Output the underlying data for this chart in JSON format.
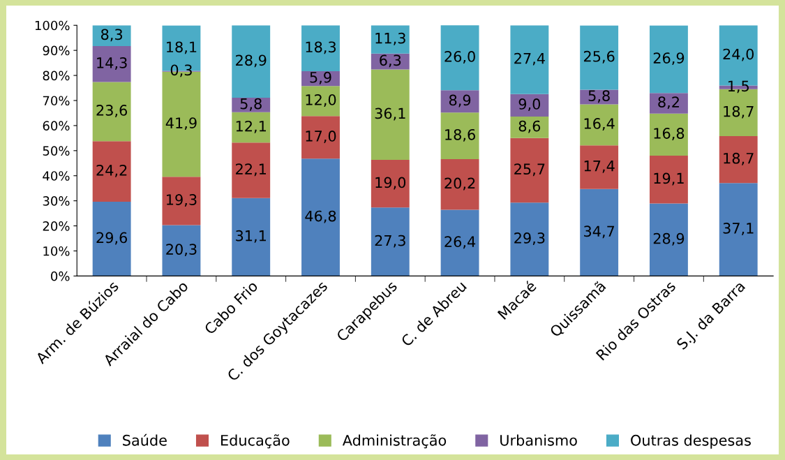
{
  "chart_data": {
    "type": "bar",
    "stacked": true,
    "categories": [
      "Arm. de Búzios",
      "Arraial do Cabo",
      "Cabo Frio",
      "C. dos Goytacazes",
      "Carapebus",
      "C. de Abreu",
      "Macaé",
      "Quissamã",
      "Rio das Ostras",
      "S.J. da Barra"
    ],
    "series": [
      {
        "name": "Saúde",
        "color": "#4f81bd",
        "values": [
          29.6,
          20.3,
          31.1,
          46.8,
          27.3,
          26.4,
          29.3,
          34.7,
          28.9,
          37.1
        ],
        "value_labels": [
          "29,6",
          "20,3",
          "31,1",
          "46,8",
          "27,3",
          "26,4",
          "29,3",
          "34,7",
          "28,9",
          "37,1"
        ]
      },
      {
        "name": "Educação",
        "color": "#c0504d",
        "values": [
          24.2,
          19.3,
          22.1,
          17.0,
          19.0,
          20.2,
          25.7,
          17.4,
          19.1,
          18.7
        ],
        "value_labels": [
          "24,2",
          "19,3",
          "22,1",
          "17,0",
          "19,0",
          "20,2",
          "25,7",
          "17,4",
          "19,1",
          "18,7"
        ]
      },
      {
        "name": "Administração",
        "color": "#9bbb59",
        "values": [
          23.6,
          41.9,
          12.1,
          12.0,
          36.1,
          18.6,
          8.6,
          16.4,
          16.8,
          18.7
        ],
        "value_labels": [
          "23,6",
          "41,9",
          "12,1",
          "12,0",
          "36,1",
          "18,6",
          "8,6",
          "16,4",
          "16,8",
          "18,7"
        ]
      },
      {
        "name": "Urbanismo",
        "color": "#8064a2",
        "values": [
          14.3,
          0.3,
          5.8,
          5.9,
          6.3,
          8.9,
          9.0,
          5.8,
          8.2,
          1.5
        ],
        "value_labels": [
          "14,3",
          "0,3",
          "5,8",
          "5,9",
          "6,3",
          "8,9",
          "9,0",
          "5,8",
          "8,2",
          "1,5"
        ]
      },
      {
        "name": "Outras despesas",
        "color": "#4bacc6",
        "values": [
          8.3,
          18.1,
          28.9,
          18.3,
          11.3,
          26.0,
          27.4,
          25.6,
          26.9,
          24.0
        ],
        "value_labels": [
          "8,3",
          "18,1",
          "28,9",
          "18,3",
          "11,3",
          "26,0",
          "27,4",
          "25,6",
          "26,9",
          "24,0"
        ]
      }
    ],
    "ylim": [
      0,
      100
    ],
    "yticks": [
      {
        "value": 0,
        "label": "0%"
      },
      {
        "value": 10,
        "label": "10%"
      },
      {
        "value": 20,
        "label": "20%"
      },
      {
        "value": 30,
        "label": "30%"
      },
      {
        "value": 40,
        "label": "40%"
      },
      {
        "value": 50,
        "label": "50%"
      },
      {
        "value": 60,
        "label": "60%"
      },
      {
        "value": 70,
        "label": "70%"
      },
      {
        "value": 80,
        "label": "80%"
      },
      {
        "value": 90,
        "label": "90%"
      },
      {
        "value": 100,
        "label": "100%"
      }
    ],
    "grid": false,
    "legend": "bottom"
  }
}
